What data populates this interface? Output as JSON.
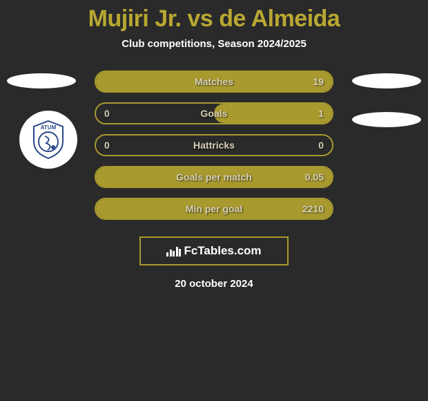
{
  "header": {
    "title": "Mujiri Jr. vs de Almeida",
    "subtitle": "Club competitions, Season 2024/2025"
  },
  "colors": {
    "accent": "#a89a2e",
    "accent_text": "#b8a832",
    "background": "#2a2a2a",
    "light_text": "#d8d2b8",
    "white": "#ffffff"
  },
  "stats": [
    {
      "label": "Matches",
      "leftValue": "",
      "rightValue": "19",
      "fill": "full"
    },
    {
      "label": "Goals",
      "leftValue": "0",
      "rightValue": "1",
      "fill": "right"
    },
    {
      "label": "Hattricks",
      "leftValue": "0",
      "rightValue": "0",
      "fill": "none"
    },
    {
      "label": "Goals per match",
      "leftValue": "",
      "rightValue": "0.05",
      "fill": "full"
    },
    {
      "label": "Min per goal",
      "leftValue": "",
      "rightValue": "2210",
      "fill": "full"
    }
  ],
  "brand": {
    "name": "FcTables.com"
  },
  "footer": {
    "date": "20 october 2024"
  },
  "badge": {
    "topText": "ATUM"
  }
}
